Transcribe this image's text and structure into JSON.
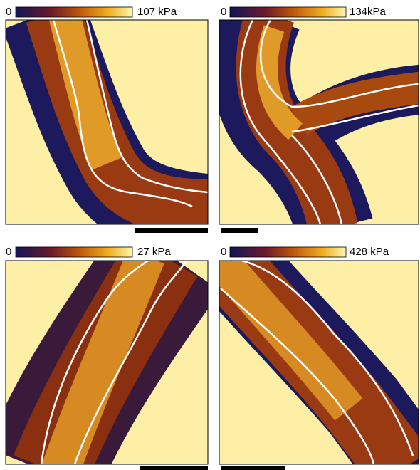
{
  "panels": [
    {
      "scale_min": "0",
      "scale_max": "107 kPa"
    },
    {
      "scale_min": "0",
      "scale_max": "134kPa"
    },
    {
      "scale_min": "0",
      "scale_max": "27 kPa"
    },
    {
      "scale_min": "0",
      "scale_max": "428 kPa"
    }
  ]
}
